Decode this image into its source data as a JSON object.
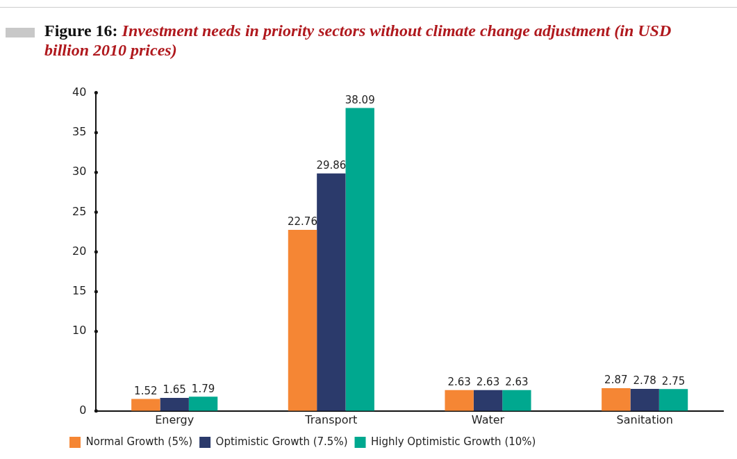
{
  "chart_data": {
    "type": "bar",
    "title": "Figure 16: Investment needs in priority sectors without climate change adjustment (in USD billion 2010  prices)",
    "categories": [
      "Energy",
      "Transport",
      "Water",
      "Sanitation"
    ],
    "series": [
      {
        "name": "Normal Growth (5%)",
        "color": "#f58634",
        "values": [
          1.52,
          22.76,
          2.63,
          2.87
        ]
      },
      {
        "name": "Optimistic Growth (7.5%)",
        "color": "#2b3a6b",
        "values": [
          1.65,
          29.86,
          2.63,
          2.78
        ]
      },
      {
        "name": "Highly Optimistic Growth (10%)",
        "color": "#00a88f",
        "values": [
          1.79,
          38.09,
          2.63,
          2.75
        ]
      }
    ],
    "ylim": [
      0,
      40
    ],
    "yticks": [
      0,
      10,
      15,
      20,
      25,
      30,
      35,
      40
    ],
    "grid": false,
    "legend": "bottom left",
    "data_labels": true
  }
}
